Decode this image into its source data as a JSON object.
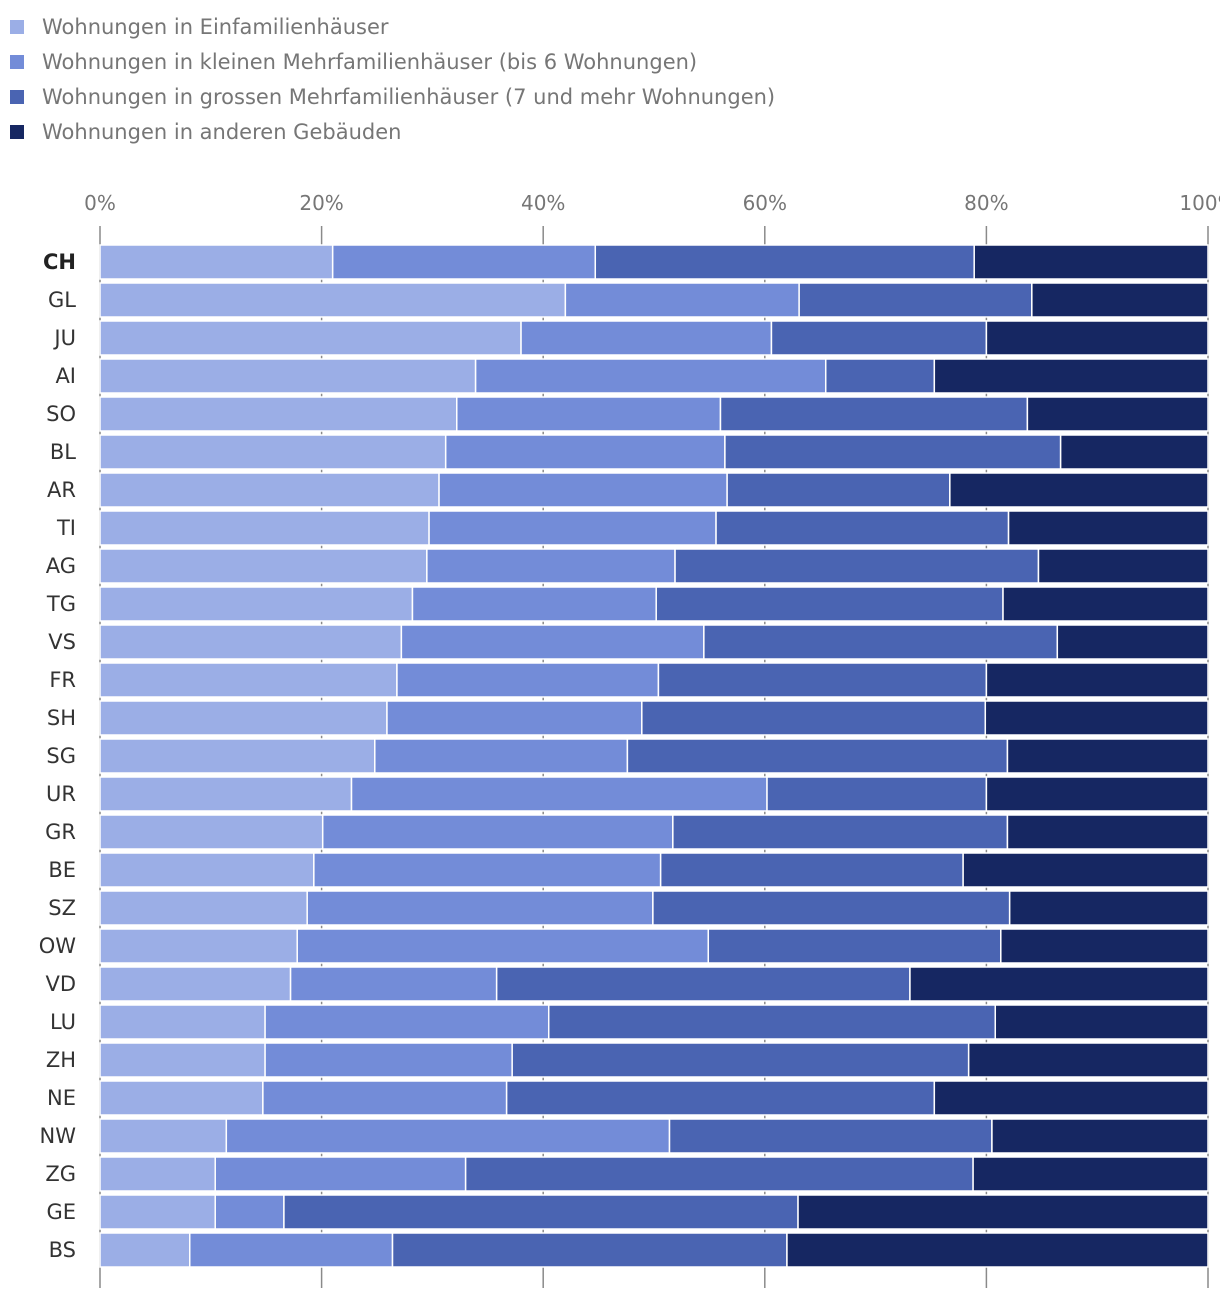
{
  "chart_data": {
    "type": "bar",
    "orientation": "horizontal",
    "stacked": true,
    "x_axis": {
      "min": 0,
      "max": 100,
      "ticks": [
        0,
        20,
        40,
        60,
        80,
        100
      ],
      "tick_labels": [
        "0%",
        "20%",
        "40%",
        "60%",
        "80%",
        "100%"
      ],
      "position": "top"
    },
    "legend_position": "top-left",
    "categories": [
      "CH",
      "GL",
      "JU",
      "AI",
      "SO",
      "BL",
      "AR",
      "TI",
      "AG",
      "TG",
      "VS",
      "FR",
      "SH",
      "SG",
      "UR",
      "GR",
      "BE",
      "SZ",
      "OW",
      "VD",
      "LU",
      "ZH",
      "NE",
      "NW",
      "ZG",
      "GE",
      "BS"
    ],
    "highlight_category": "CH",
    "series": [
      {
        "name": "Wohnungen in Einfamilienhäuser",
        "color": "#9baee6",
        "values": [
          21.0,
          42.0,
          38.0,
          33.9,
          32.2,
          31.2,
          30.6,
          29.7,
          29.5,
          28.2,
          27.2,
          26.8,
          25.9,
          24.8,
          22.7,
          20.1,
          19.3,
          18.7,
          17.8,
          17.2,
          14.9,
          14.9,
          14.7,
          11.4,
          10.4,
          10.4,
          8.1
        ]
      },
      {
        "name": "Wohnungen in kleinen Mehrfamilienhäuser (bis 6 Wohnungen)",
        "color": "#738cd8",
        "values": [
          23.7,
          21.1,
          22.6,
          31.6,
          23.8,
          25.2,
          26.0,
          25.9,
          22.4,
          22.0,
          27.3,
          23.6,
          23.0,
          22.8,
          37.5,
          31.6,
          31.3,
          31.2,
          37.1,
          18.6,
          25.6,
          22.3,
          22.0,
          40.0,
          22.6,
          6.2,
          18.3
        ]
      },
      {
        "name": "Wohnungen in grossen Mehrfamilienhäuser (7 und mehr Wohnungen)",
        "color": "#4a64b2",
        "values": [
          34.2,
          21.0,
          19.4,
          9.8,
          27.7,
          30.3,
          20.1,
          26.4,
          32.8,
          31.3,
          31.9,
          29.6,
          31.0,
          34.3,
          19.8,
          30.2,
          27.3,
          32.2,
          26.4,
          37.3,
          40.3,
          41.2,
          38.6,
          29.1,
          45.8,
          46.4,
          35.6
        ]
      },
      {
        "name": "Wohnungen in anderen Gebäuden",
        "color": "#162762",
        "values": [
          21.1,
          15.9,
          20.0,
          24.7,
          16.3,
          13.3,
          23.3,
          18.0,
          15.3,
          18.5,
          13.6,
          20.0,
          20.1,
          18.1,
          20.0,
          18.1,
          22.1,
          17.9,
          18.7,
          26.9,
          19.2,
          21.6,
          24.7,
          19.5,
          21.2,
          37.0,
          38.0
        ]
      }
    ]
  }
}
